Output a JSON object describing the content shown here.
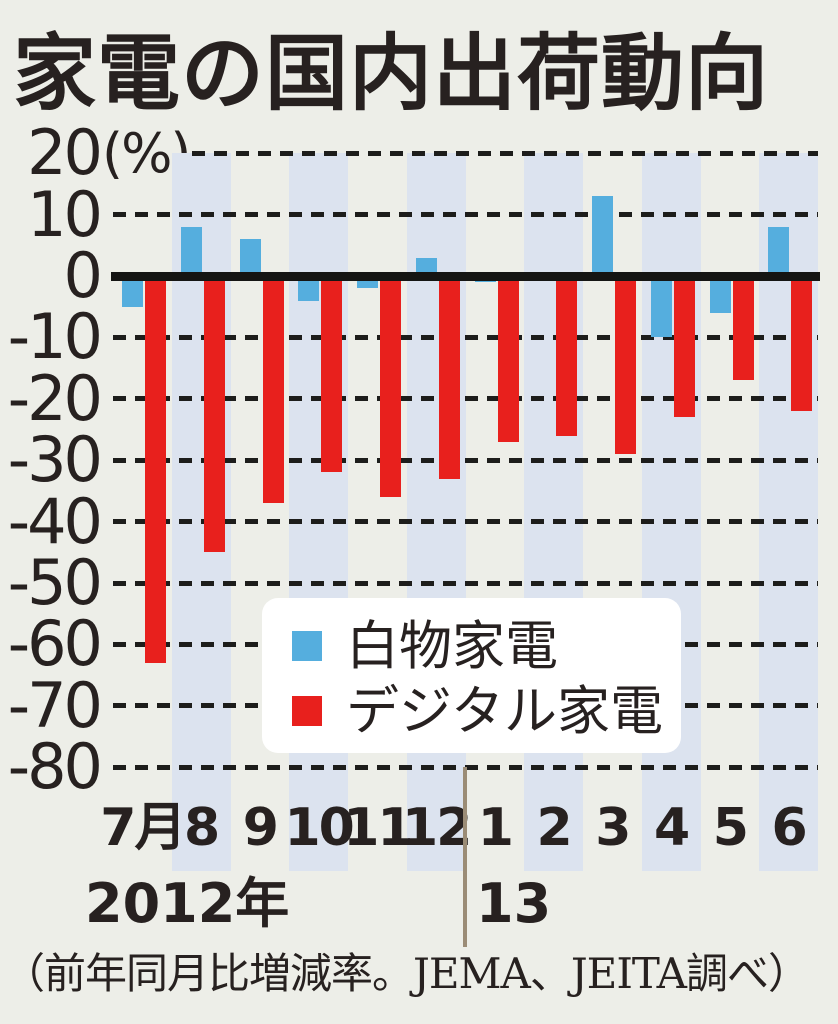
{
  "title": "家電の国内出荷動向",
  "y_axis": {
    "unit_label": "(%)",
    "ticks": [
      20,
      10,
      0,
      -10,
      -20,
      -30,
      -40,
      -50,
      -60,
      -70,
      -80
    ]
  },
  "x_axis": {
    "months": [
      "7月",
      "8",
      "9",
      "10",
      "11",
      "12",
      "1",
      "2",
      "3",
      "4",
      "5",
      "6"
    ],
    "year_left": "2012年",
    "year_right": "13"
  },
  "legend": {
    "items": [
      {
        "label": "白物家電",
        "color": "#55aede"
      },
      {
        "label": "デジタル家電",
        "color": "#e8201d"
      }
    ]
  },
  "caption": "（前年同月比増減率。JEMA、JEITA調べ）",
  "colors": {
    "background": "#edeee8",
    "stripe": "#dce3ef",
    "gridline": "#1d1d1b",
    "zero_line": "#151513",
    "text": "#272120",
    "divider": "#9b8c76",
    "legend_background": "#ffffff",
    "white_goods_blue": "#55aede",
    "digital_red": "#e8201d"
  },
  "chart_data": {
    "type": "bar",
    "title": "家電の国内出荷動向",
    "xlabel": "月 (2012年7月〜13年6月)",
    "ylabel": "(%) 前年同月比増減率",
    "ylim": [
      -80,
      20
    ],
    "grid": "dashed horizontal every 10%",
    "legend_position": "inside lower center",
    "categories": [
      "2012-07",
      "2012-08",
      "2012-09",
      "2012-10",
      "2012-11",
      "2012-12",
      "2013-01",
      "2013-02",
      "2013-03",
      "2013-04",
      "2013-05",
      "2013-06"
    ],
    "series": [
      {
        "name": "白物家電",
        "color": "#55aede",
        "values": [
          -5,
          8,
          6,
          -4,
          -2,
          3,
          -1,
          0,
          13,
          -10,
          -6,
          8
        ]
      },
      {
        "name": "デジタル家電",
        "color": "#e8201d",
        "values": [
          -63,
          -45,
          -37,
          -32,
          -36,
          -33,
          -27,
          -26,
          -29,
          -23,
          -17,
          -22
        ]
      }
    ]
  }
}
